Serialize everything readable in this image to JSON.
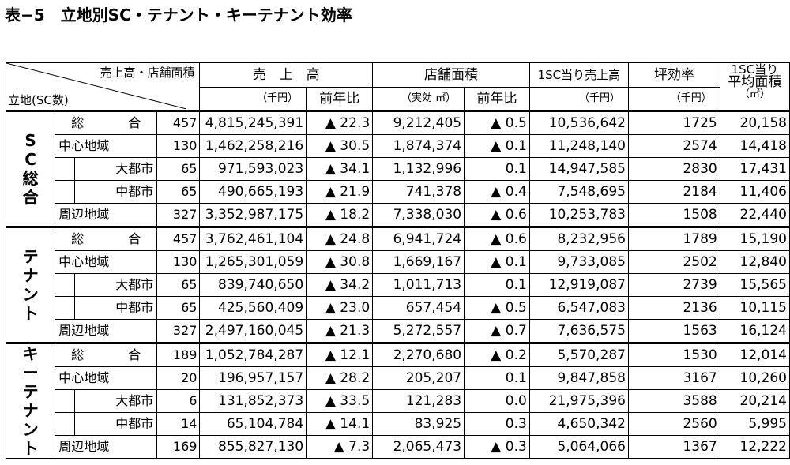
{
  "title": "表−5　立地別SC・テナント・キーテナント効率",
  "header": {
    "corner_top": "売上高・店舗面積",
    "corner_bottom": "立地(SC数)",
    "sales": "売　上　高",
    "sales_unit": "（千円）",
    "yoy": "前年比",
    "area": "店舗面積",
    "area_unit": "（実効 ㎡）",
    "area_yoy": "前年比",
    "sales_per_sc": "1SC当り売上高",
    "sales_per_sc_unit": "（千円）",
    "tsubo": "坪効率",
    "tsubo_unit": "（千円）",
    "area_per_sc_1": "1SC当り",
    "area_per_sc_2": "平均面積",
    "area_per_sc_3": "（㎡）"
  },
  "groups": [
    {
      "name": "SC総合",
      "rows": [
        {
          "label": "総　合",
          "count": "457",
          "sales": "4,815,245,391",
          "sales_yoy": "▲ 22.3",
          "area": "9,212,405",
          "area_yoy": "▲ 0.5",
          "sales_per_sc": "10,536,642",
          "tsubo": "1725",
          "area_per_sc": "20,158"
        },
        {
          "label": "中心地域",
          "count": "130",
          "sales": "1,462,258,216",
          "sales_yoy": "▲ 30.5",
          "area": "1,874,374",
          "area_yoy": "▲ 0.1",
          "sales_per_sc": "11,248,140",
          "tsubo": "2574",
          "area_per_sc": "14,418"
        },
        {
          "label": "大都市",
          "count": "65",
          "sales": "971,593,023",
          "sales_yoy": "▲ 34.1",
          "area": "1,132,996",
          "area_yoy": "0.1",
          "sales_per_sc": "14,947,585",
          "tsubo": "2830",
          "area_per_sc": "17,431"
        },
        {
          "label": "中都市",
          "count": "65",
          "sales": "490,665,193",
          "sales_yoy": "▲ 21.9",
          "area": "741,378",
          "area_yoy": "▲ 0.4",
          "sales_per_sc": "7,548,695",
          "tsubo": "2184",
          "area_per_sc": "11,406"
        },
        {
          "label": "周辺地域",
          "count": "327",
          "sales": "3,352,987,175",
          "sales_yoy": "▲ 18.2",
          "area": "7,338,030",
          "area_yoy": "▲ 0.6",
          "sales_per_sc": "10,253,783",
          "tsubo": "1508",
          "area_per_sc": "22,440"
        }
      ]
    },
    {
      "name": "テナント",
      "rows": [
        {
          "label": "総　合",
          "count": "457",
          "sales": "3,762,461,104",
          "sales_yoy": "▲ 24.8",
          "area": "6,941,724",
          "area_yoy": "▲ 0.6",
          "sales_per_sc": "8,232,956",
          "tsubo": "1789",
          "area_per_sc": "15,190"
        },
        {
          "label": "中心地域",
          "count": "130",
          "sales": "1,265,301,059",
          "sales_yoy": "▲ 30.8",
          "area": "1,669,167",
          "area_yoy": "▲ 0.1",
          "sales_per_sc": "9,733,085",
          "tsubo": "2502",
          "area_per_sc": "12,840"
        },
        {
          "label": "大都市",
          "count": "65",
          "sales": "839,740,650",
          "sales_yoy": "▲ 34.2",
          "area": "1,011,713",
          "area_yoy": "0.1",
          "sales_per_sc": "12,919,087",
          "tsubo": "2739",
          "area_per_sc": "15,565"
        },
        {
          "label": "中都市",
          "count": "65",
          "sales": "425,560,409",
          "sales_yoy": "▲ 23.0",
          "area": "657,454",
          "area_yoy": "▲ 0.5",
          "sales_per_sc": "6,547,083",
          "tsubo": "2136",
          "area_per_sc": "10,115"
        },
        {
          "label": "周辺地域",
          "count": "327",
          "sales": "2,497,160,045",
          "sales_yoy": "▲ 21.3",
          "area": "5,272,557",
          "area_yoy": "▲ 0.7",
          "sales_per_sc": "7,636,575",
          "tsubo": "1563",
          "area_per_sc": "16,124"
        }
      ]
    },
    {
      "name": "キーテナント",
      "rows": [
        {
          "label": "総　合",
          "count": "189",
          "sales": "1,052,784,287",
          "sales_yoy": "▲ 12.1",
          "area": "2,270,680",
          "area_yoy": "▲ 0.2",
          "sales_per_sc": "5,570,287",
          "tsubo": "1530",
          "area_per_sc": "12,014"
        },
        {
          "label": "中心地域",
          "count": "20",
          "sales": "196,957,157",
          "sales_yoy": "▲ 28.2",
          "area": "205,207",
          "area_yoy": "0.1",
          "sales_per_sc": "9,847,858",
          "tsubo": "3167",
          "area_per_sc": "10,260"
        },
        {
          "label": "大都市",
          "count": "6",
          "sales": "131,852,373",
          "sales_yoy": "▲ 33.5",
          "area": "121,283",
          "area_yoy": "0.0",
          "sales_per_sc": "21,975,396",
          "tsubo": "3588",
          "area_per_sc": "20,214"
        },
        {
          "label": "中都市",
          "count": "14",
          "sales": "65,104,784",
          "sales_yoy": "▲ 14.1",
          "area": "83,925",
          "area_yoy": "0.3",
          "sales_per_sc": "4,650,342",
          "tsubo": "2560",
          "area_per_sc": "5,995"
        },
        {
          "label": "周辺地域",
          "count": "169",
          "sales": "855,827,130",
          "sales_yoy": "▲ 7.3",
          "area": "2,065,473",
          "area_yoy": "▲ 0.3",
          "sales_per_sc": "5,064,066",
          "tsubo": "1367",
          "area_per_sc": "12,222"
        }
      ]
    }
  ]
}
